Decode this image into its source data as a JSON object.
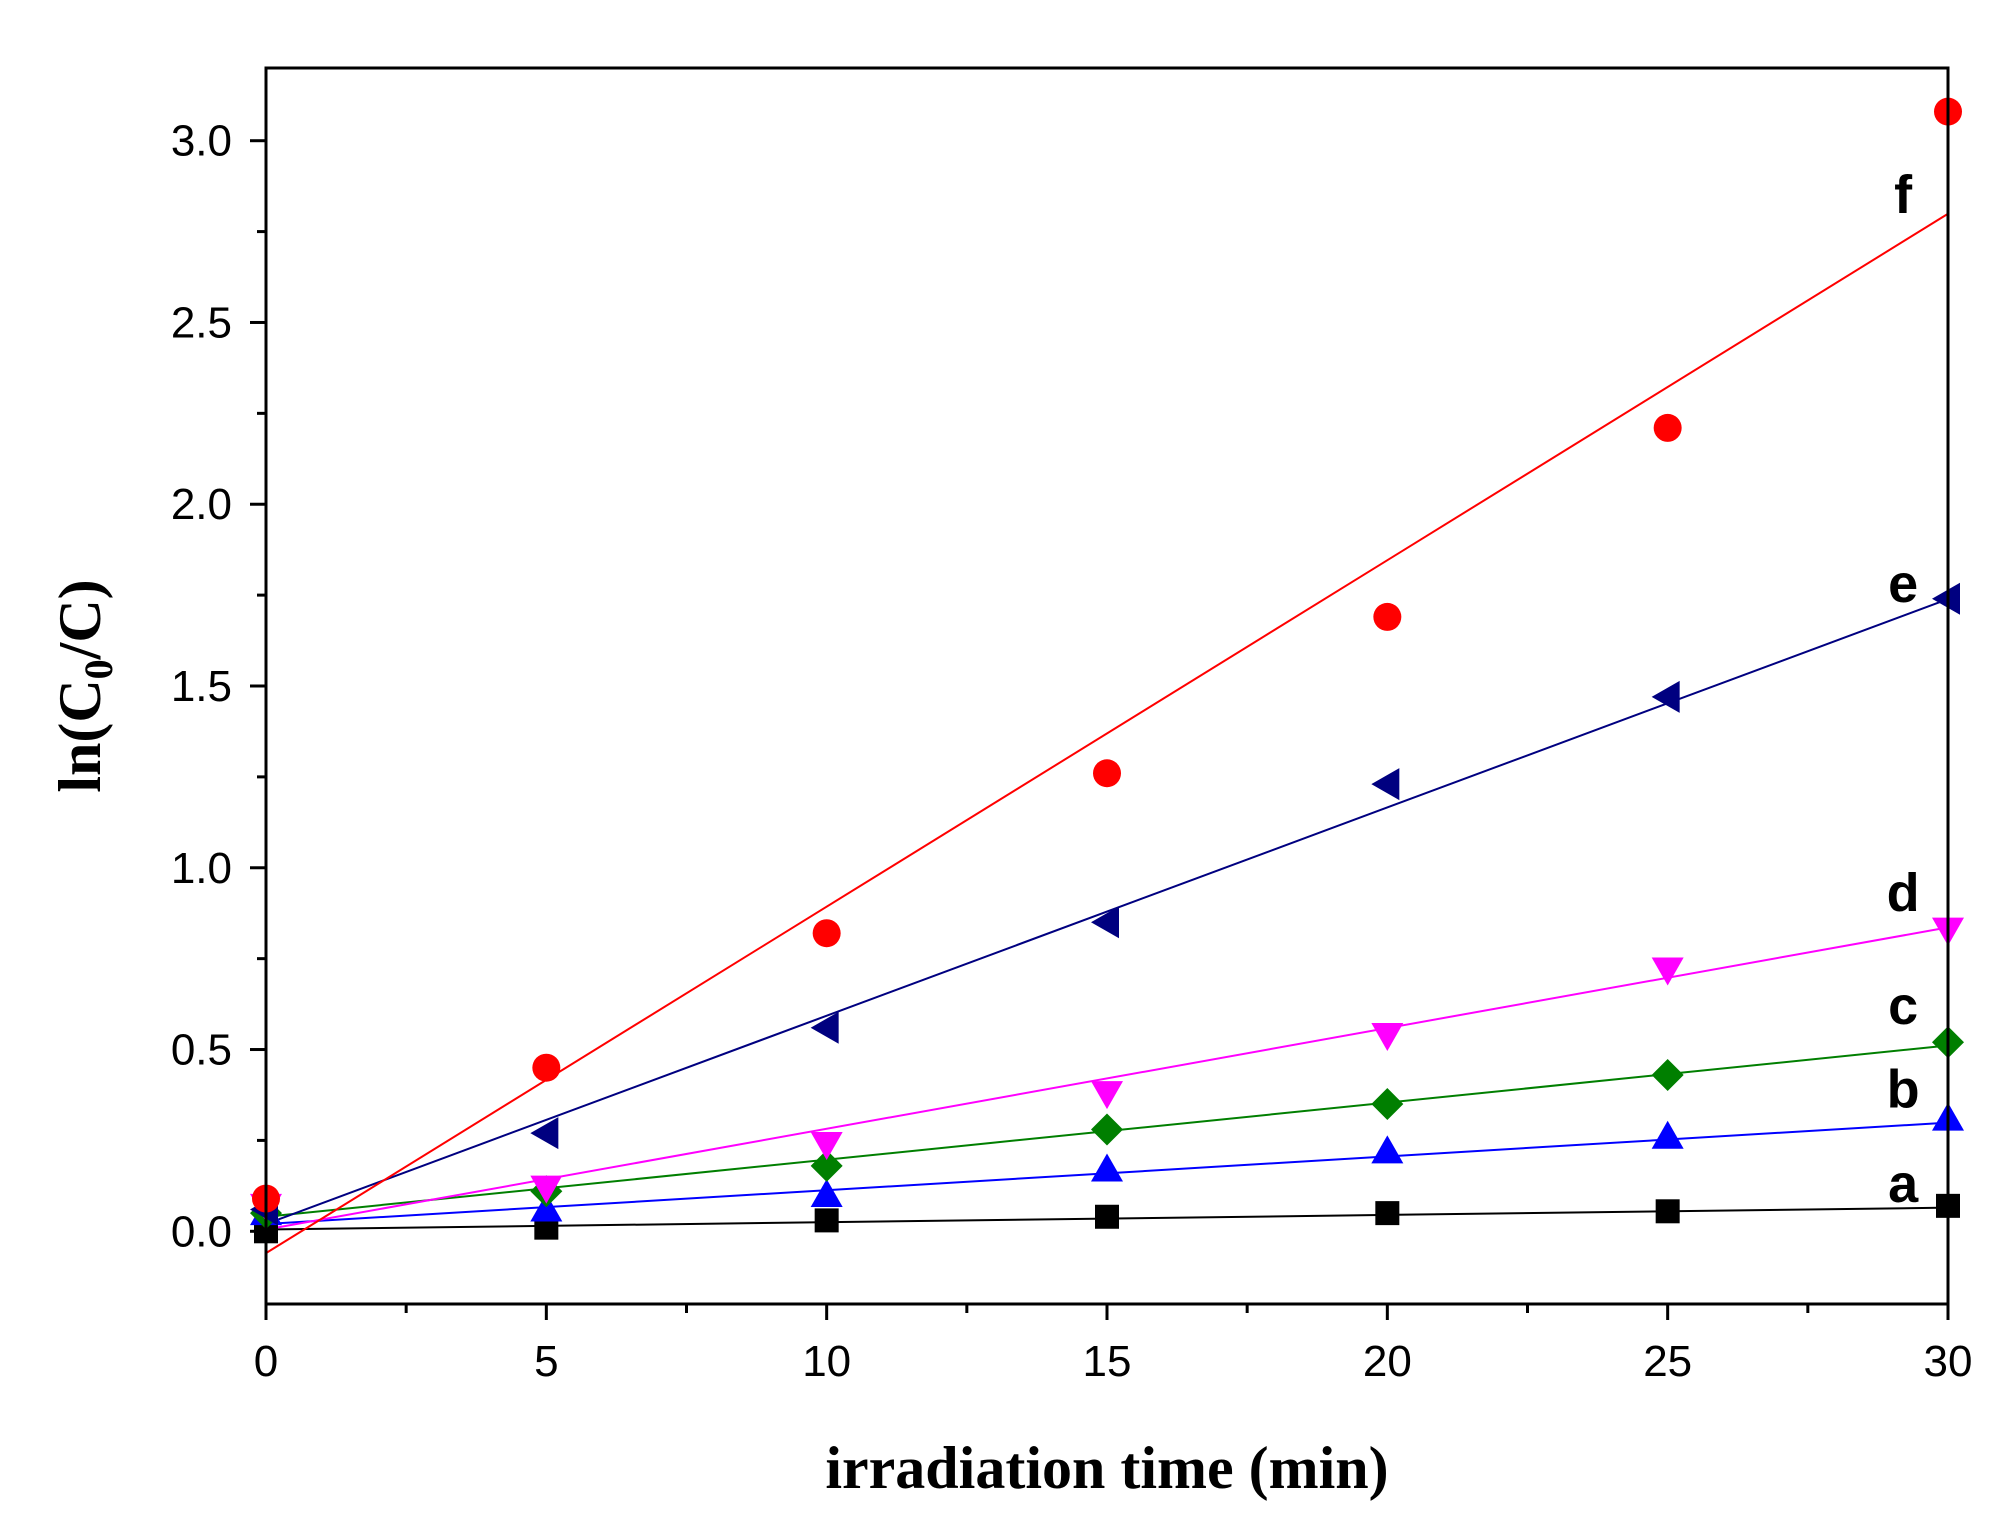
{
  "chart_data": {
    "type": "scatter",
    "title": "",
    "xlabel": "irradiation time (min)",
    "ylabel": {
      "prefix": "ln(C",
      "subscript": "0",
      "suffix": "/C)"
    },
    "xlim": [
      0,
      30
    ],
    "ylim": [
      -0.2,
      3.2
    ],
    "x_ticks": [
      0,
      5,
      10,
      15,
      20,
      25,
      30
    ],
    "x_tick_labels": [
      "0",
      "5",
      "10",
      "15",
      "20",
      "25",
      "30"
    ],
    "y_ticks": [
      0.0,
      0.5,
      1.0,
      1.5,
      2.0,
      2.5,
      3.0
    ],
    "y_tick_labels": [
      "0.0",
      "0.5",
      "1.0",
      "1.5",
      "2.0",
      "2.5",
      "3.0"
    ],
    "grid": false,
    "x": [
      0,
      5,
      10,
      15,
      20,
      25,
      30
    ],
    "series": [
      {
        "name": "a",
        "label": "a",
        "color": "#000000",
        "marker": "square",
        "values": [
          0.0,
          0.01,
          0.03,
          0.04,
          0.05,
          0.055,
          0.07
        ],
        "fit": {
          "intercept": 0.005,
          "slope": 0.002
        }
      },
      {
        "name": "b",
        "label": "b",
        "color": "#0000ff",
        "marker": "triangle-up",
        "values": [
          0.05,
          0.06,
          0.1,
          0.17,
          0.22,
          0.26,
          0.31
        ],
        "fit": {
          "intercept": 0.02,
          "slope": 0.0093
        }
      },
      {
        "name": "c",
        "label": "c",
        "color": "#007f00",
        "marker": "diamond",
        "values": [
          0.05,
          0.11,
          0.18,
          0.28,
          0.35,
          0.43,
          0.52
        ],
        "fit": {
          "intercept": 0.04,
          "slope": 0.0157
        }
      },
      {
        "name": "d",
        "label": "d",
        "color": "#ff00ff",
        "marker": "triangle-down",
        "values": [
          0.07,
          0.12,
          0.24,
          0.38,
          0.54,
          0.72,
          0.83
        ],
        "fit": {
          "intercept": 0.005,
          "slope": 0.0277
        }
      },
      {
        "name": "e",
        "label": "e",
        "color": "#000080",
        "marker": "triangle-left",
        "values": [
          0.06,
          0.27,
          0.56,
          0.85,
          1.23,
          1.47,
          1.74
        ],
        "fit": {
          "intercept": 0.02,
          "slope": 0.0573
        }
      },
      {
        "name": "f",
        "label": "f",
        "color": "#ff0000",
        "marker": "circle",
        "values": [
          0.09,
          0.45,
          0.82,
          1.26,
          1.69,
          2.21,
          3.08
        ],
        "fit": {
          "intercept": -0.06,
          "slope": 0.0953
        }
      }
    ],
    "annotations": [
      {
        "text": "f",
        "x": 29.2,
        "y": 2.85
      },
      {
        "text": "e",
        "x": 29.2,
        "y": 1.78
      },
      {
        "text": "d",
        "x": 29.2,
        "y": 0.93
      },
      {
        "text": "c",
        "x": 29.2,
        "y": 0.62
      },
      {
        "text": "b",
        "x": 29.2,
        "y": 0.39
      },
      {
        "text": "a",
        "x": 29.2,
        "y": 0.13
      }
    ]
  }
}
